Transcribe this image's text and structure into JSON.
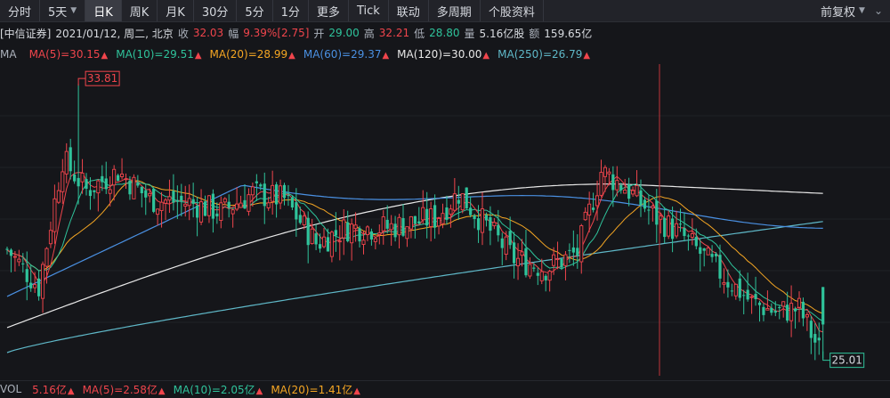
{
  "toolbar": {
    "tabs": [
      {
        "label": "分时",
        "dropdown": false,
        "active": false
      },
      {
        "label": "5天",
        "dropdown": true,
        "active": false
      },
      {
        "label": "日K",
        "dropdown": false,
        "active": true
      },
      {
        "label": "周K",
        "dropdown": false,
        "active": false
      },
      {
        "label": "月K",
        "dropdown": false,
        "active": false
      },
      {
        "label": "30分",
        "dropdown": false,
        "active": false
      },
      {
        "label": "5分",
        "dropdown": false,
        "active": false
      },
      {
        "label": "1分",
        "dropdown": false,
        "active": false
      },
      {
        "label": "更多",
        "dropdown": false,
        "active": false
      },
      {
        "label": "Tick",
        "dropdown": false,
        "active": false
      },
      {
        "label": "联动",
        "dropdown": false,
        "active": false
      },
      {
        "label": "多周期",
        "dropdown": false,
        "active": false
      },
      {
        "label": "个股资料",
        "dropdown": false,
        "active": false
      }
    ],
    "adjust_label": "前复权"
  },
  "info": {
    "broker": "[中信证券]",
    "date": "2021/01/12, 周二, 北京",
    "close_label": "收",
    "close_value": "32.03",
    "change_label": "幅",
    "change_value": "9.39%[2.75]",
    "open_label": "开",
    "open_value": "29.00",
    "high_label": "高",
    "high_value": "32.21",
    "low_label": "低",
    "low_value": "28.80",
    "volume_label": "量",
    "volume_value": "5.16亿股",
    "amount_label": "额",
    "amount_value": "159.65亿"
  },
  "ma": {
    "label": "MA",
    "items": [
      {
        "text": "MA(5)=30.15",
        "color": "#f0454c"
      },
      {
        "text": "MA(10)=29.51",
        "color": "#2fc39b"
      },
      {
        "text": "MA(20)=28.99",
        "color": "#f5a623"
      },
      {
        "text": "MA(60)=29.37",
        "color": "#4a90e2"
      },
      {
        "text": "MA(120)=30.00",
        "color": "#e8e8e8"
      },
      {
        "text": "MA(250)=26.79",
        "color": "#5fb8c8"
      }
    ]
  },
  "chart": {
    "high_marker": "33.81",
    "low_marker": "25.01",
    "colors": {
      "up": "#f0454c",
      "down": "#2fc39b",
      "crosshair": "#c0343a"
    }
  },
  "vol": {
    "label": "VOL",
    "items": [
      {
        "text": "5.16亿",
        "color": "#f0454c"
      },
      {
        "text": "MA(5)=2.58亿",
        "color": "#f0454c"
      },
      {
        "text": "MA(10)=2.05亿",
        "color": "#2fc39b"
      },
      {
        "text": "MA(20)=1.41亿",
        "color": "#f5a623"
      }
    ]
  }
}
